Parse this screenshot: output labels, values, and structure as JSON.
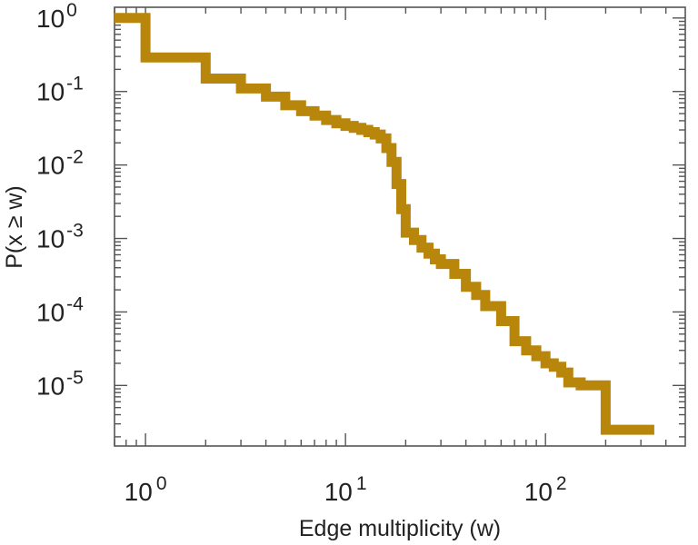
{
  "chart_data": {
    "type": "line",
    "style": "step",
    "scale": {
      "x": "log",
      "y": "log"
    },
    "xlabel": "Edge multiplicity (w)",
    "ylabel": "P(x ≥ w)",
    "xlim": [
      0.7,
      500
    ],
    "ylim": [
      1.5e-06,
      1.4
    ],
    "x_ticks": [
      {
        "value": 1,
        "base": "10",
        "exp": "0"
      },
      {
        "value": 10,
        "base": "10",
        "exp": "1"
      },
      {
        "value": 100,
        "base": "10",
        "exp": "2"
      }
    ],
    "y_ticks": [
      {
        "value": 1,
        "base": "10",
        "exp": "0"
      },
      {
        "value": 0.1,
        "base": "10",
        "exp": "-1"
      },
      {
        "value": 0.01,
        "base": "10",
        "exp": "-2"
      },
      {
        "value": 0.001,
        "base": "10",
        "exp": "-3"
      },
      {
        "value": 0.0001,
        "base": "10",
        "exp": "-4"
      },
      {
        "value": 1e-05,
        "base": "10",
        "exp": "-5"
      }
    ],
    "series": [
      {
        "name": "P(x ≥ w)",
        "color": "#b8860b",
        "x": [
          0.7,
          1,
          2,
          3,
          4,
          5,
          6,
          7,
          8,
          9,
          10,
          11,
          12,
          13,
          14,
          15,
          16,
          17,
          18,
          19,
          20,
          22,
          24,
          26,
          28,
          30,
          35,
          40,
          45,
          50,
          60,
          70,
          80,
          90,
          100,
          110,
          120,
          130,
          150,
          200,
          350
        ],
        "y": [
          1,
          0.29,
          0.15,
          0.11,
          0.085,
          0.065,
          0.054,
          0.047,
          0.041,
          0.037,
          0.034,
          0.032,
          0.03,
          0.028,
          0.026,
          0.023,
          0.017,
          0.011,
          0.0055,
          0.0025,
          0.0012,
          0.00095,
          0.00075,
          0.00062,
          0.00052,
          0.00045,
          0.00033,
          0.00022,
          0.00017,
          0.00012,
          7.5e-05,
          4e-05,
          3e-05,
          2.5e-05,
          2e-05,
          1.8e-05,
          1.5e-05,
          1.1e-05,
          1e-05,
          2.5e-06,
          2.5e-06
        ]
      }
    ]
  }
}
